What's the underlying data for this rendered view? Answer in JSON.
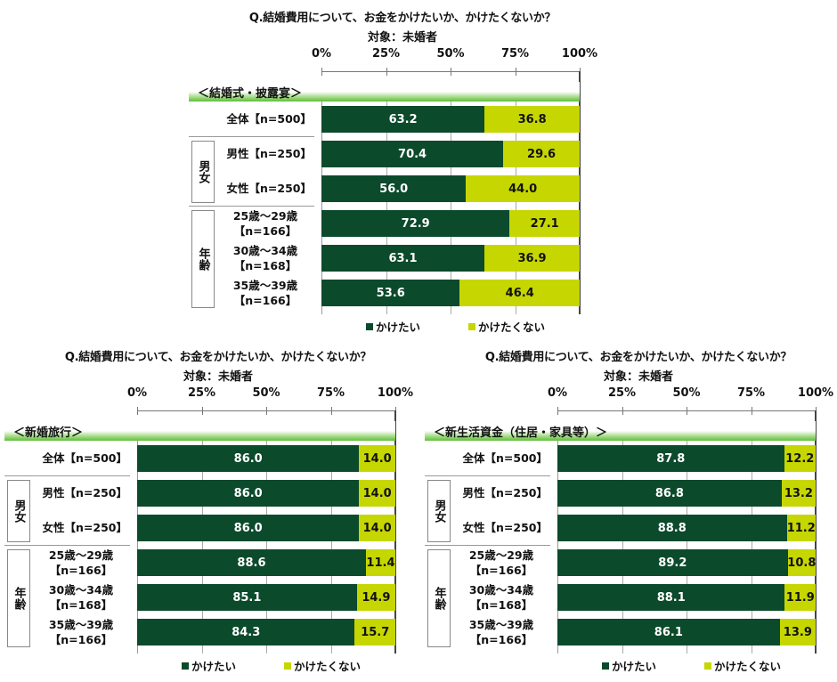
{
  "title": "Q.結婚費用について、お金をかけたいか、かけたくないか？",
  "subtitle": "対象：未婚者",
  "ticks": [
    "0%",
    "25%",
    "50%",
    "75%",
    "100%"
  ],
  "legend": [
    "かけたい",
    "かけたくない"
  ],
  "colors": {
    "want": "#0c4a2c",
    "not_want": "#c6d600"
  },
  "groups": {
    "gender": "男女",
    "age": "年齢"
  },
  "categories": [
    "全体【n=500】",
    "男性【n=250】",
    "女性【n=250】",
    "25歳～29歳【n=166】",
    "30歳～34歳【n=168】",
    "35歳～39歳【n=166】"
  ],
  "chart_data": [
    {
      "type": "bar",
      "stacked": true,
      "orientation": "horizontal",
      "title": "Q.結婚費用について、お金をかけたいか、かけたくないか？",
      "subtitle": "対象：未婚者",
      "section": "＜結婚式・披露宴＞",
      "xlim": [
        0,
        100
      ],
      "categories": [
        "全体【n=500】",
        "男性【n=250】",
        "女性【n=250】",
        "25歳～29歳【n=166】",
        "30歳～34歳【n=168】",
        "35歳～39歳【n=166】"
      ],
      "series": [
        {
          "name": "かけたい",
          "values": [
            63.2,
            70.4,
            56.0,
            72.9,
            63.1,
            53.6
          ]
        },
        {
          "name": "かけたくない",
          "values": [
            36.8,
            29.6,
            44.0,
            27.1,
            36.9,
            46.4
          ]
        }
      ],
      "legend": "bottom"
    },
    {
      "type": "bar",
      "stacked": true,
      "orientation": "horizontal",
      "title": "Q.結婚費用について、お金をかけたいか、かけたくないか？",
      "subtitle": "対象：未婚者",
      "section": "＜新婚旅行＞",
      "xlim": [
        0,
        100
      ],
      "categories": [
        "全体【n=500】",
        "男性【n=250】",
        "女性【n=250】",
        "25歳～29歳【n=166】",
        "30歳～34歳【n=168】",
        "35歳～39歳【n=166】"
      ],
      "series": [
        {
          "name": "かけたい",
          "values": [
            86.0,
            86.0,
            86.0,
            88.6,
            85.1,
            84.3
          ]
        },
        {
          "name": "かけたくない",
          "values": [
            14.0,
            14.0,
            14.0,
            11.4,
            14.9,
            15.7
          ]
        }
      ],
      "legend": "bottom"
    },
    {
      "type": "bar",
      "stacked": true,
      "orientation": "horizontal",
      "title": "Q.結婚費用について、お金をかけたいか、かけたくないか？",
      "subtitle": "対象：未婚者",
      "section": "＜新生活資金（住居・家具等）＞",
      "xlim": [
        0,
        100
      ],
      "categories": [
        "全体【n=500】",
        "男性【n=250】",
        "女性【n=250】",
        "25歳～29歳【n=166】",
        "30歳～34歳【n=168】",
        "35歳～39歳【n=166】"
      ],
      "series": [
        {
          "name": "かけたい",
          "values": [
            87.8,
            86.8,
            88.8,
            89.2,
            88.1,
            86.1
          ]
        },
        {
          "name": "かけたくない",
          "values": [
            12.2,
            13.2,
            11.2,
            10.8,
            11.9,
            13.9
          ]
        }
      ],
      "legend": "bottom"
    }
  ]
}
